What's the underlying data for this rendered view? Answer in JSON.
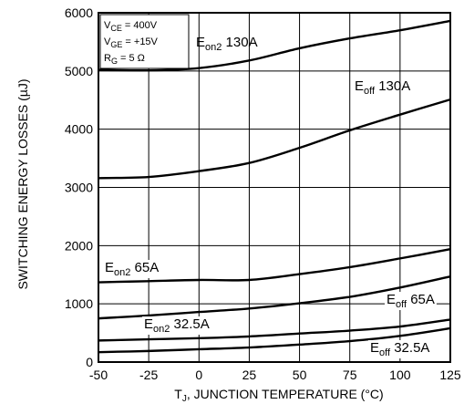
{
  "chart_data": {
    "type": "line",
    "title": "",
    "xlabel": {
      "main": "T",
      "sub": "J",
      "rest": ", JUNCTION TEMPERATURE (°C)"
    },
    "ylabel": "SWITCHING ENERGY LOSSES (µJ)",
    "xlim": [
      -50,
      125
    ],
    "ylim": [
      0,
      6000
    ],
    "x_ticks": [
      "-50",
      "-25",
      "0",
      "25",
      "50",
      "75",
      "100",
      "125"
    ],
    "y_ticks": [
      "0",
      "1000",
      "2000",
      "3000",
      "4000",
      "5000",
      "6000"
    ],
    "grid": true,
    "conditions": [
      {
        "main": "V",
        "sub": "CE",
        "rest": " = 400V"
      },
      {
        "main": "V",
        "sub": "GE",
        "rest": " = +15V"
      },
      {
        "main": "R",
        "sub": "G",
        "rest": " = 5 Ω"
      }
    ],
    "series": [
      {
        "name": "Eon2 130A",
        "label_main": "E",
        "label_sub": "on2",
        "label_rest": " 130A",
        "x": [
          -50,
          -25,
          0,
          25,
          50,
          75,
          100,
          125
        ],
        "values": [
          5020,
          5010,
          5050,
          5180,
          5390,
          5560,
          5700,
          5860
        ]
      },
      {
        "name": "Eoff 130A",
        "label_main": "E",
        "label_sub": "off",
        "label_rest": " 130A",
        "x": [
          -50,
          -25,
          0,
          25,
          50,
          75,
          100,
          125
        ],
        "values": [
          3160,
          3180,
          3280,
          3420,
          3680,
          3980,
          4250,
          4510
        ]
      },
      {
        "name": "Eon2 65A",
        "label_main": "E",
        "label_sub": "on2",
        "label_rest": " 65A",
        "x": [
          -50,
          -25,
          0,
          25,
          50,
          75,
          100,
          125
        ],
        "values": [
          1370,
          1390,
          1410,
          1410,
          1510,
          1630,
          1780,
          1940
        ]
      },
      {
        "name": "Eoff 65A",
        "label_main": "E",
        "label_sub": "off",
        "label_rest": " 65A",
        "x": [
          -50,
          -25,
          0,
          25,
          50,
          75,
          100,
          125
        ],
        "values": [
          750,
          800,
          860,
          920,
          1010,
          1120,
          1280,
          1470
        ]
      },
      {
        "name": "Eon2 32.5A",
        "label_main": "E",
        "label_sub": "on2",
        "label_rest": " 32.5A",
        "x": [
          -50,
          -25,
          0,
          25,
          50,
          75,
          100,
          125
        ],
        "values": [
          370,
          390,
          410,
          440,
          490,
          540,
          610,
          730
        ]
      },
      {
        "name": "Eoff 32.5A",
        "label_main": "E",
        "label_sub": "off",
        "label_rest": " 32.5A",
        "x": [
          -50,
          -25,
          0,
          25,
          50,
          75,
          100,
          125
        ],
        "values": [
          170,
          190,
          220,
          250,
          300,
          360,
          450,
          580
        ]
      }
    ]
  }
}
